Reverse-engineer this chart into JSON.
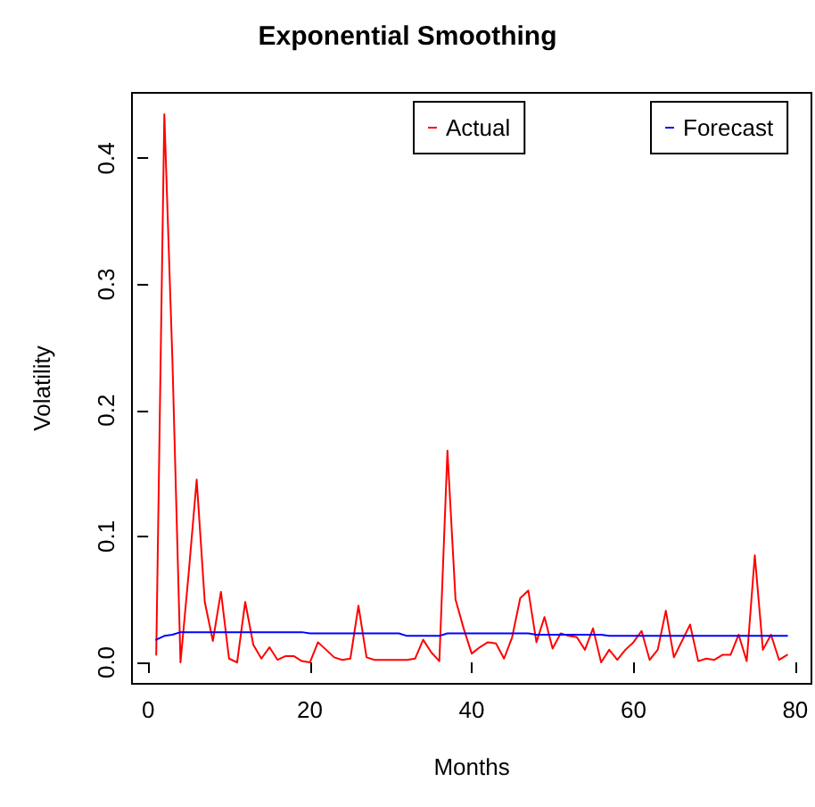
{
  "chart_data": {
    "type": "line",
    "title": "Exponential Smoothing",
    "xlabel": "Months",
    "ylabel": "Volatility",
    "x": [
      1,
      2,
      3,
      4,
      5,
      6,
      7,
      8,
      9,
      10,
      11,
      12,
      13,
      14,
      15,
      16,
      17,
      18,
      19,
      20,
      21,
      22,
      23,
      24,
      25,
      26,
      27,
      28,
      29,
      30,
      31,
      32,
      33,
      34,
      35,
      36,
      37,
      38,
      39,
      40,
      41,
      42,
      43,
      44,
      45,
      46,
      47,
      48,
      49,
      50,
      51,
      52,
      53,
      54,
      55,
      56,
      57,
      58,
      59,
      60,
      61,
      62,
      63,
      64,
      65,
      66,
      67,
      68,
      69,
      70,
      71,
      72,
      73,
      74,
      75,
      76,
      77,
      78,
      79
    ],
    "series": [
      {
        "name": "Actual",
        "color": "#ff0000",
        "values": [
          0.006,
          0.435,
          0.24,
          0.0,
          0.07,
          0.145,
          0.048,
          0.017,
          0.056,
          0.003,
          0.0,
          0.048,
          0.014,
          0.003,
          0.012,
          0.002,
          0.005,
          0.005,
          0.001,
          0.0,
          0.016,
          0.01,
          0.004,
          0.002,
          0.003,
          0.045,
          0.004,
          0.002,
          0.002,
          0.002,
          0.002,
          0.002,
          0.003,
          0.018,
          0.008,
          0.001,
          0.168,
          0.05,
          0.027,
          0.007,
          0.012,
          0.016,
          0.015,
          0.003,
          0.02,
          0.051,
          0.057,
          0.016,
          0.036,
          0.011,
          0.023,
          0.021,
          0.02,
          0.01,
          0.027,
          0.0,
          0.01,
          0.002,
          0.01,
          0.016,
          0.025,
          0.002,
          0.01,
          0.041,
          0.004,
          0.017,
          0.03,
          0.001,
          0.003,
          0.002,
          0.006,
          0.006,
          0.022,
          0.001,
          0.085,
          0.01,
          0.022,
          0.002,
          0.006
        ]
      },
      {
        "name": "Forecast",
        "color": "#0000ff",
        "values": [
          0.018,
          0.021,
          0.022,
          0.024,
          0.024,
          0.024,
          0.024,
          0.024,
          0.024,
          0.024,
          0.024,
          0.024,
          0.024,
          0.024,
          0.024,
          0.024,
          0.024,
          0.024,
          0.024,
          0.023,
          0.023,
          0.023,
          0.023,
          0.023,
          0.023,
          0.023,
          0.023,
          0.023,
          0.023,
          0.023,
          0.023,
          0.021,
          0.021,
          0.021,
          0.021,
          0.021,
          0.023,
          0.023,
          0.023,
          0.023,
          0.023,
          0.023,
          0.023,
          0.023,
          0.023,
          0.023,
          0.023,
          0.022,
          0.022,
          0.022,
          0.022,
          0.022,
          0.022,
          0.022,
          0.022,
          0.022,
          0.021,
          0.021,
          0.021,
          0.021,
          0.021,
          0.021,
          0.021,
          0.021,
          0.021,
          0.021,
          0.021,
          0.021,
          0.021,
          0.021,
          0.021,
          0.021,
          0.021,
          0.021,
          0.021,
          0.021,
          0.021,
          0.021,
          0.021
        ]
      }
    ],
    "xlim": [
      -2,
      82
    ],
    "xticks": [
      0,
      20,
      40,
      60,
      80
    ],
    "ylim": [
      -0.017,
      0.452
    ],
    "yticks": [
      {
        "value": 0,
        "label": "0.0"
      },
      0.1,
      0.2,
      0.3,
      0.4
    ],
    "legend": "top right",
    "marker": "none",
    "line_style": "solid"
  }
}
